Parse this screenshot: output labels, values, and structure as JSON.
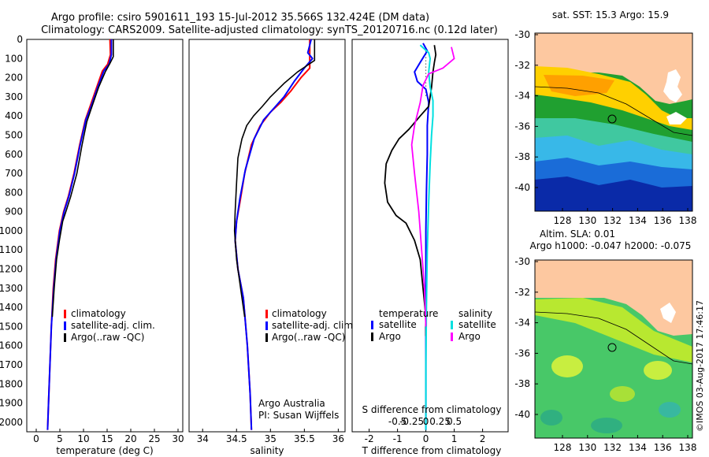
{
  "title": {
    "line1": "Argo profile: csiro 5901611_193 15-Jul-2012 35.566S 132.424E (DM data)",
    "line2": "Climatology: CARS2009. Satellite-adjusted climatology: synTS_20120716.nc (0.12d later)"
  },
  "colors": {
    "climatology": "#ff0000",
    "satellite": "#0000ff",
    "argo": "#000000",
    "sal_satellite": "#00e0e0",
    "sal_argo": "#ff00ff",
    "land": "#fdc8a0"
  },
  "depth_axis": {
    "range": [
      0,
      2050
    ],
    "ticks": [
      0,
      100,
      200,
      300,
      400,
      500,
      600,
      700,
      800,
      900,
      1000,
      1100,
      1200,
      1300,
      1400,
      1500,
      1600,
      1700,
      1800,
      1900,
      2000
    ]
  },
  "chart_data": [
    {
      "type": "line",
      "name": "temperature-profile",
      "xlabel": "temperature (deg C)",
      "xlim": [
        -2,
        31
      ],
      "xticks": [
        0,
        5,
        10,
        15,
        20,
        25,
        30
      ],
      "ylim": [
        0,
        2050
      ],
      "legend": [
        "climatology",
        "satellite-adj. clim.",
        "Argo(..raw -QC)"
      ],
      "series": [
        {
          "name": "climatology",
          "color_key": "climatology",
          "width": 2,
          "points": [
            [
              15.6,
              0
            ],
            [
              15.7,
              80
            ],
            [
              15.1,
              130
            ],
            [
              14.0,
              165
            ],
            [
              12.8,
              250
            ],
            [
              11.4,
              350
            ],
            [
              10.4,
              420
            ],
            [
              9.2,
              550
            ],
            [
              8.0,
              700
            ],
            [
              6.8,
              820
            ],
            [
              5.8,
              900
            ],
            [
              4.9,
              1000
            ],
            [
              4.1,
              1150
            ],
            [
              3.6,
              1300
            ],
            [
              3.2,
              1500
            ],
            [
              2.9,
              1700
            ],
            [
              2.6,
              1900
            ],
            [
              2.4,
              2040
            ]
          ]
        },
        {
          "name": "satellite-adj. clim.",
          "color_key": "satellite",
          "width": 2,
          "points": [
            [
              15.9,
              0
            ],
            [
              15.9,
              80
            ],
            [
              15.4,
              130
            ],
            [
              14.3,
              165
            ],
            [
              13.0,
              250
            ],
            [
              11.6,
              350
            ],
            [
              10.5,
              420
            ],
            [
              9.3,
              550
            ],
            [
              8.1,
              700
            ],
            [
              6.9,
              820
            ],
            [
              5.9,
              900
            ],
            [
              5.0,
              1000
            ],
            [
              4.2,
              1150
            ],
            [
              3.7,
              1300
            ],
            [
              3.2,
              1500
            ],
            [
              2.9,
              1700
            ],
            [
              2.6,
              1900
            ],
            [
              2.4,
              2040
            ]
          ]
        },
        {
          "name": "Argo(..raw -QC)",
          "color_key": "argo",
          "width": 1.6,
          "points": [
            [
              16.3,
              0
            ],
            [
              16.3,
              90
            ],
            [
              15.7,
              120
            ],
            [
              14.6,
              170
            ],
            [
              13.2,
              250
            ],
            [
              11.8,
              350
            ],
            [
              10.7,
              430
            ],
            [
              9.7,
              550
            ],
            [
              8.6,
              700
            ],
            [
              7.3,
              820
            ],
            [
              6.4,
              890
            ],
            [
              5.6,
              950
            ],
            [
              4.9,
              1050
            ],
            [
              4.3,
              1150
            ],
            [
              3.8,
              1300
            ],
            [
              3.4,
              1450
            ]
          ]
        }
      ]
    },
    {
      "type": "line",
      "name": "salinity-profile",
      "xlabel": "salinity",
      "xlim": [
        33.8,
        36.1
      ],
      "xticks": [
        34,
        34.5,
        35,
        35.5,
        36
      ],
      "ylim": [
        0,
        2050
      ],
      "legend": [
        "climatology",
        "satellite-adj. clim.",
        "Argo(..raw -QC)"
      ],
      "annotation": [
        "Argo Australia",
        "PI: Susan Wijffels"
      ],
      "series": [
        {
          "name": "climatology",
          "color_key": "climatology",
          "width": 2,
          "points": [
            [
              35.58,
              0
            ],
            [
              35.58,
              150
            ],
            [
              35.45,
              200
            ],
            [
              35.3,
              270
            ],
            [
              35.15,
              330
            ],
            [
              35.0,
              380
            ],
            [
              34.85,
              450
            ],
            [
              34.72,
              550
            ],
            [
              34.62,
              700
            ],
            [
              34.55,
              850
            ],
            [
              34.5,
              950
            ],
            [
              34.48,
              1050
            ],
            [
              34.52,
              1200
            ],
            [
              34.6,
              1350
            ],
            [
              34.66,
              1600
            ],
            [
              34.7,
              1850
            ],
            [
              34.72,
              2040
            ]
          ]
        },
        {
          "name": "satellite-adj. clim.",
          "color_key": "satellite",
          "width": 2,
          "points": [
            [
              35.6,
              0
            ],
            [
              35.55,
              70
            ],
            [
              35.62,
              100
            ],
            [
              35.5,
              150
            ],
            [
              35.35,
              220
            ],
            [
              35.2,
              300
            ],
            [
              35.05,
              360
            ],
            [
              34.9,
              420
            ],
            [
              34.76,
              520
            ],
            [
              34.63,
              680
            ],
            [
              34.55,
              830
            ],
            [
              34.5,
              950
            ],
            [
              34.48,
              1050
            ],
            [
              34.52,
              1200
            ],
            [
              34.6,
              1350
            ],
            [
              34.66,
              1600
            ],
            [
              34.7,
              1850
            ],
            [
              34.72,
              2040
            ]
          ]
        },
        {
          "name": "Argo(..raw -QC)",
          "color_key": "argo",
          "width": 1.6,
          "points": [
            [
              35.65,
              0
            ],
            [
              35.65,
              110
            ],
            [
              35.4,
              170
            ],
            [
              35.2,
              230
            ],
            [
              35.0,
              300
            ],
            [
              34.88,
              350
            ],
            [
              34.75,
              400
            ],
            [
              34.65,
              450
            ],
            [
              34.58,
              520
            ],
            [
              34.52,
              620
            ],
            [
              34.5,
              750
            ],
            [
              34.48,
              900
            ],
            [
              34.47,
              1000
            ],
            [
              34.5,
              1150
            ],
            [
              34.56,
              1300
            ],
            [
              34.62,
              1450
            ]
          ]
        }
      ]
    },
    {
      "type": "line",
      "name": "difference-profile",
      "xlabel": "T difference from climatology",
      "secondary_xlabel": "S difference from climatology",
      "xlim": [
        -2.6,
        2.9
      ],
      "xticks": [
        -2,
        -1,
        0,
        1,
        2
      ],
      "secondary_ticks": [
        "-0.5",
        "-0.25",
        "0",
        "0.25",
        "0.5"
      ],
      "ylim": [
        0,
        2050
      ],
      "legend_temperature": [
        "temperature",
        "satellite",
        "Argo"
      ],
      "legend_salinity": [
        "salinity",
        "satellite",
        "Argo"
      ],
      "series": [
        {
          "name": "temperature satellite",
          "color_key": "satellite",
          "width": 2,
          "points": [
            [
              -0.1,
              20
            ],
            [
              0.05,
              60
            ],
            [
              -0.2,
              120
            ],
            [
              -0.4,
              170
            ],
            [
              -0.3,
              220
            ],
            [
              0,
              260
            ],
            [
              0.1,
              330
            ],
            [
              0.05,
              450
            ],
            [
              0.05,
              600
            ],
            [
              0.02,
              800
            ],
            [
              0,
              1000
            ],
            [
              0,
              1500
            ],
            [
              0,
              2040
            ]
          ]
        },
        {
          "name": "temperature Argo",
          "color_key": "argo",
          "width": 1.8,
          "points": [
            [
              0.3,
              30
            ],
            [
              0.35,
              80
            ],
            [
              0.3,
              120
            ],
            [
              0.25,
              170
            ],
            [
              0.2,
              250
            ],
            [
              0.1,
              350
            ],
            [
              -0.2,
              400
            ],
            [
              -0.6,
              470
            ],
            [
              -0.95,
              520
            ],
            [
              -1.2,
              580
            ],
            [
              -1.4,
              650
            ],
            [
              -1.45,
              750
            ],
            [
              -1.35,
              850
            ],
            [
              -1.05,
              920
            ],
            [
              -0.7,
              960
            ],
            [
              -0.4,
              1050
            ],
            [
              -0.2,
              1150
            ],
            [
              -0.1,
              1300
            ],
            [
              0,
              1450
            ],
            [
              0,
              1550
            ]
          ]
        },
        {
          "name": "salinity satellite",
          "color_key": "sal_satellite",
          "width": 2,
          "points": [
            [
              -0.2,
              30
            ],
            [
              0.1,
              70
            ],
            [
              0.15,
              100
            ],
            [
              0.1,
              170
            ],
            [
              0.15,
              250
            ],
            [
              0.25,
              320
            ],
            [
              0.25,
              400
            ],
            [
              0.2,
              500
            ],
            [
              0.15,
              650
            ],
            [
              0.1,
              850
            ],
            [
              0.05,
              1100
            ],
            [
              0.02,
              1400
            ],
            [
              0,
              1700
            ],
            [
              0,
              2040
            ]
          ]
        },
        {
          "name": "salinity Argo",
          "color_key": "sal_argo",
          "width": 1.8,
          "points": [
            [
              0.9,
              40
            ],
            [
              1.0,
              100
            ],
            [
              0.6,
              150
            ],
            [
              0.1,
              180
            ],
            [
              -0.1,
              240
            ],
            [
              -0.2,
              330
            ],
            [
              -0.4,
              450
            ],
            [
              -0.5,
              550
            ],
            [
              -0.4,
              700
            ],
            [
              -0.25,
              900
            ],
            [
              -0.15,
              1100
            ],
            [
              -0.05,
              1300
            ],
            [
              0,
              1500
            ]
          ]
        }
      ]
    }
  ],
  "maps": [
    {
      "name": "sst",
      "title": "sat. SST: 15.3  Argo: 15.9",
      "lat_ticks": [
        "-30",
        "-32",
        "-34",
        "-36",
        "-38",
        "-40"
      ],
      "lon_ticks": [
        "128",
        "130",
        "132",
        "134",
        "136",
        "138"
      ]
    },
    {
      "name": "sla",
      "title": "Altim. SLA: 0.01",
      "subtitle": "Argo h1000: -0.047  h2000: -0.075",
      "lat_ticks": [
        "-30",
        "-32",
        "-34",
        "-36",
        "-38",
        "-40"
      ],
      "lon_ticks": [
        "128",
        "130",
        "132",
        "134",
        "136",
        "138"
      ]
    }
  ],
  "credit": "©IMOS 03-Aug-2017 17:46:17"
}
